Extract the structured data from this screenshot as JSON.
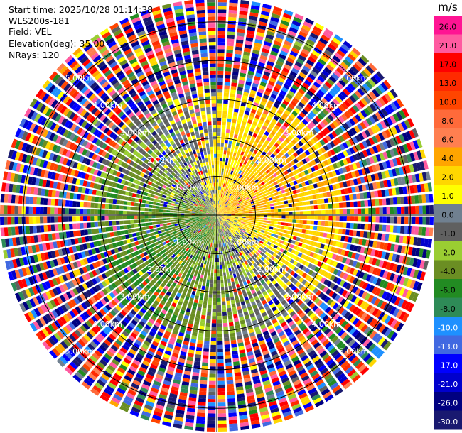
{
  "header": {
    "start_time": "Start time: 2025/10/28 01:14:38",
    "instrument": "WLS200s-181",
    "field": "Field: VEL",
    "elevation": "Elevation(deg): 35.00",
    "nrays": "NRays: 120"
  },
  "chart_data": {
    "type": "heatmap",
    "projection": "polar-ppi",
    "field": "VEL",
    "units": "m/s",
    "nrays": 120,
    "elevation_deg": 35.0,
    "range_rings_km": [
      1,
      2,
      3,
      4,
      5
    ],
    "range_ring_labels": [
      "1.00km",
      "2.00km",
      "3.00km",
      "4.00km",
      "5.00km"
    ],
    "max_range_km": 5.6,
    "velocity_range": [
      -30,
      30
    ],
    "colorbar": {
      "unit_label": "m/s",
      "ticks": [
        "26.0",
        "21.0",
        "17.0",
        "13.0",
        "10.0",
        "8.0",
        "6.0",
        "4.0",
        "2.0",
        "1.0",
        "0.0",
        "-1.0",
        "-2.0",
        "-4.0",
        "-6.0",
        "-8.0",
        "-10.0",
        "-13.0",
        "-17.0",
        "-21.0",
        "-26.0",
        "-30.0"
      ],
      "colors": [
        "#ff1493",
        "#ff5aa0",
        "#ff0000",
        "#ff2a00",
        "#ff4500",
        "#ff6a3a",
        "#ff7f50",
        "#ffa500",
        "#ffd700",
        "#ffff00",
        "#708090",
        "#606060",
        "#9acd32",
        "#6b8e23",
        "#228b22",
        "#2e8b57",
        "#1e90ff",
        "#4169e1",
        "#0000ff",
        "#0000cd",
        "#000080",
        "#191970"
      ]
    }
  }
}
